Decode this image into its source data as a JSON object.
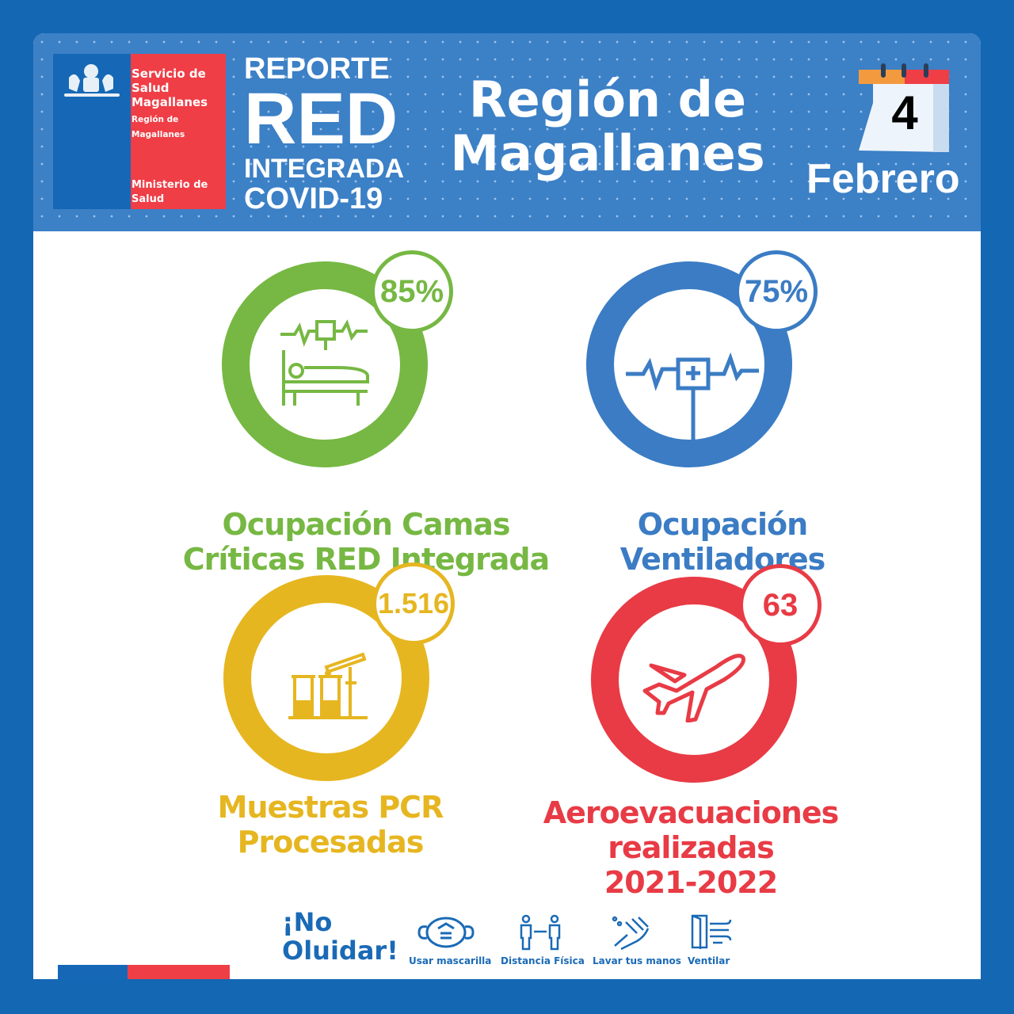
{
  "logo": {
    "line1": "Servicio de Salud Magallanes",
    "line2": "Región de",
    "line3": "Magallanes",
    "line4": "Ministerio de Salud"
  },
  "report": {
    "l1": "REPORTE",
    "l2": "RED",
    "l3": "INTEGRADA",
    "l4": "COVID-19"
  },
  "region": {
    "l1": "Región de",
    "l2": "Magallanes"
  },
  "date": {
    "day": "4",
    "month": "Febrero"
  },
  "colors": {
    "green": "#76b843",
    "blue": "#3b7cc4",
    "yellow": "#e6b621",
    "red": "#e83b45",
    "header": "#3c80c6"
  },
  "metrics": [
    {
      "value": "85%",
      "label1": "Ocupación Camas",
      "label2": "Críticas RED Integrada",
      "icon": "hospital-bed-icon",
      "color": "#76b843"
    },
    {
      "value": "75%",
      "label1": "Ocupación",
      "label2": "Ventiladores",
      "icon": "iv-monitor-icon",
      "color": "#3b7cc4"
    },
    {
      "value": "1.516",
      "label1": "Muestras PCR",
      "label2": "Procesadas",
      "icon": "test-tubes-icon",
      "color": "#e6b621"
    },
    {
      "value": "63",
      "label1": "Aeroevacuaciones",
      "label2": "realizadas",
      "label3": "2021-2022",
      "icon": "airplane-icon",
      "color": "#e83b45"
    }
  ],
  "footer": {
    "title1": "¡No",
    "title2": "Oluidar!",
    "items": [
      "Usar mascarilla",
      "Distancia Física",
      "Lavar tus manos",
      "Ventilar"
    ]
  }
}
